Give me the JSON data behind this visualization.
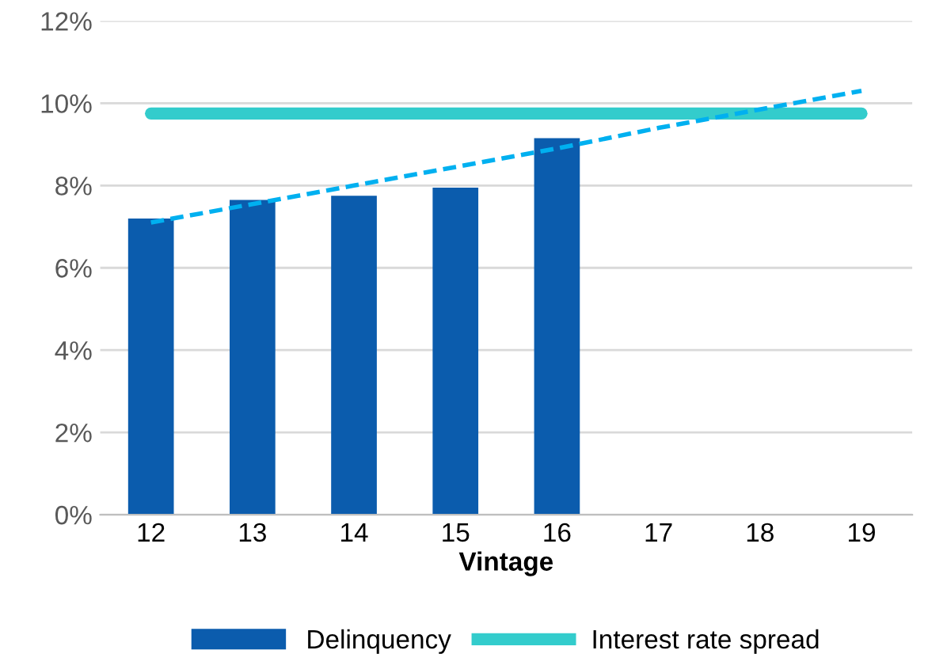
{
  "chart_data": {
    "type": "bar",
    "xlabel": "Vintage",
    "categories": [
      "12",
      "13",
      "14",
      "15",
      "16",
      "17",
      "18",
      "19"
    ],
    "series": [
      {
        "name": "Delinquency",
        "color": "#0b5cad",
        "values": [
          7.2,
          7.65,
          7.75,
          7.95,
          9.15,
          null,
          null,
          null
        ]
      },
      {
        "name": "Interest rate spread",
        "type": "line",
        "color": "#33cccc",
        "values": [
          9.75,
          9.75,
          9.75,
          9.75,
          9.75,
          9.75,
          9.75,
          9.75
        ]
      },
      {
        "type": "line",
        "color": "#00b0f0",
        "line_style": "dashed",
        "values": [
          7.1,
          7.55,
          8.0,
          8.45,
          8.9,
          9.4,
          9.85,
          10.3
        ]
      }
    ],
    "ylim": [
      0,
      12
    ],
    "yticks": [
      {
        "value": 0,
        "label": "0%"
      },
      {
        "value": 2,
        "label": "2%"
      },
      {
        "value": 4,
        "label": "4%"
      },
      {
        "value": 6,
        "label": "6%"
      },
      {
        "value": 8,
        "label": "8%"
      },
      {
        "value": 10,
        "label": "10%"
      },
      {
        "value": 12,
        "label": "12%"
      }
    ],
    "grid": "y",
    "legend": "bottom"
  }
}
